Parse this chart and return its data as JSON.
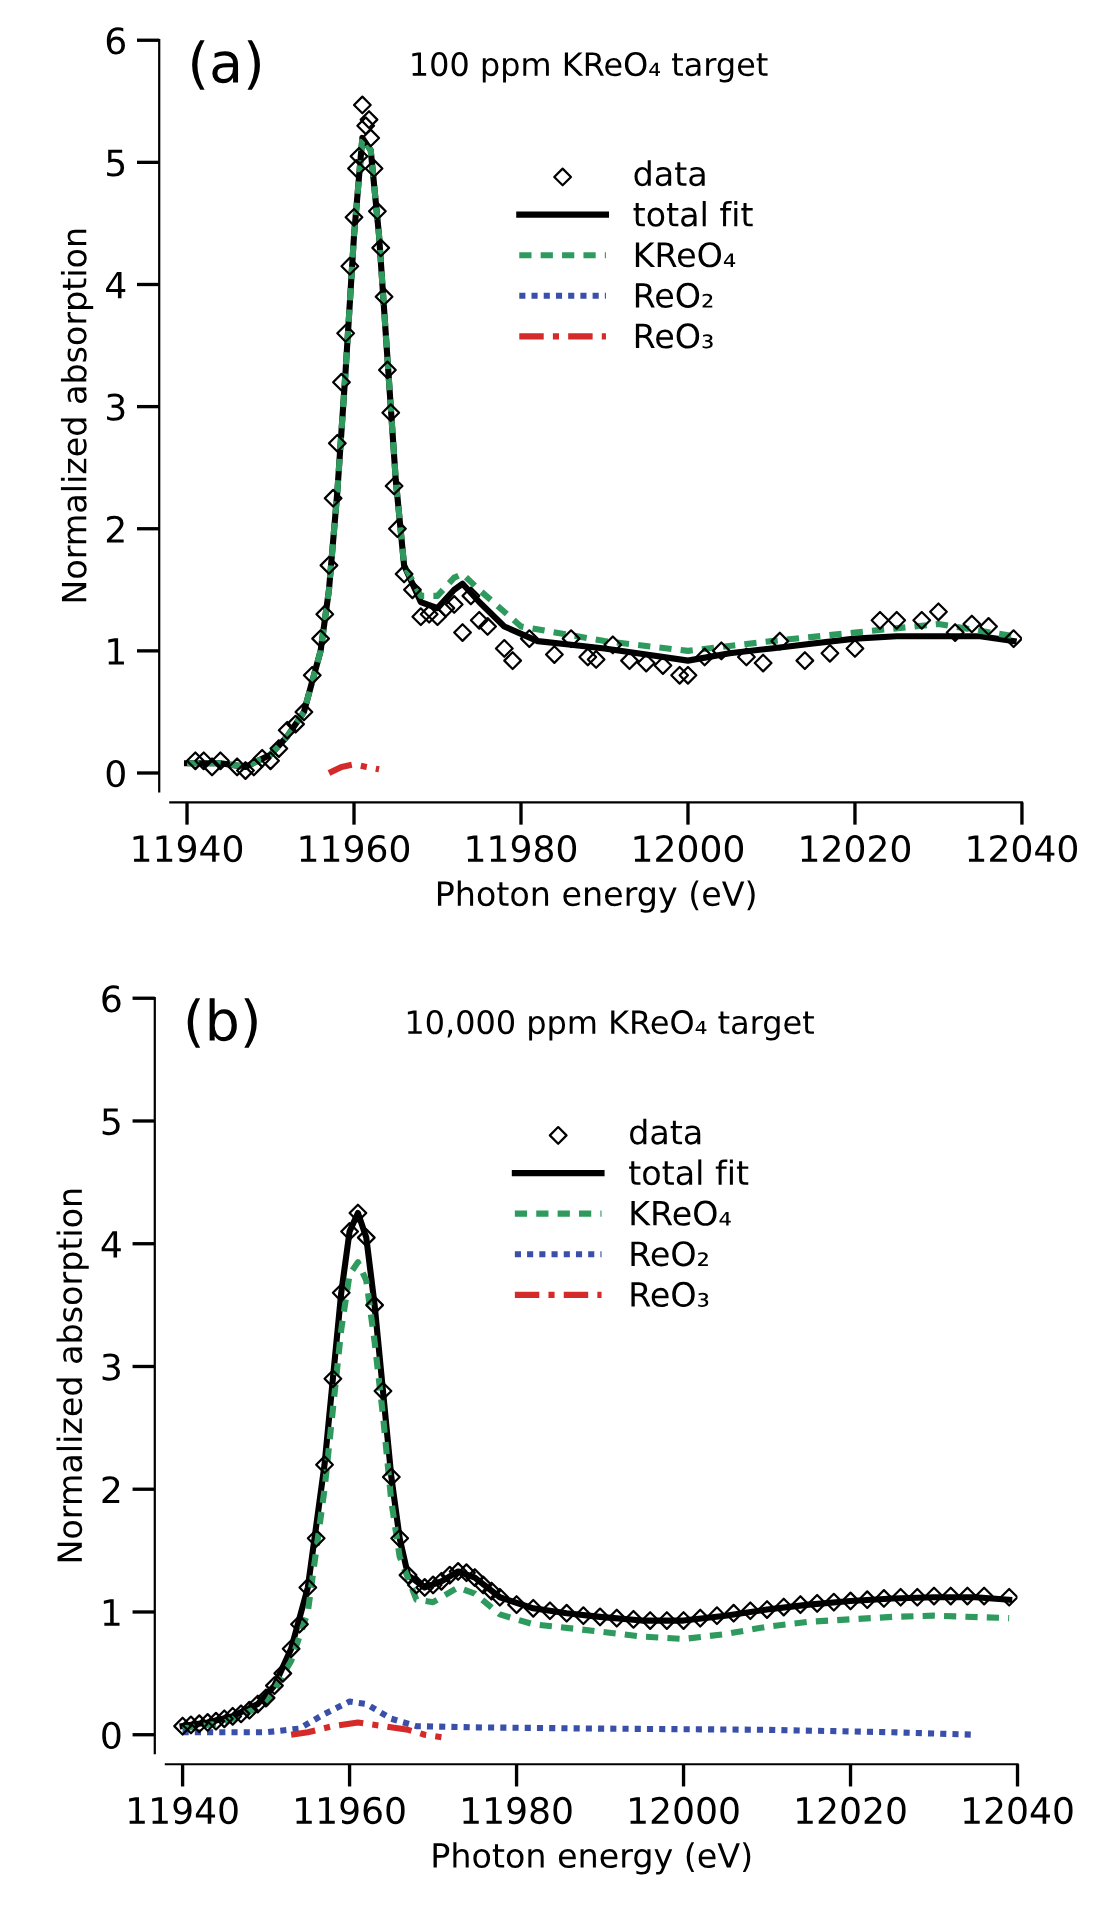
{
  "chart_data": [
    {
      "type": "line",
      "title": "100 ppm KReO₄ target",
      "annotations": [
        "(a)"
      ],
      "xlabel": "Photon energy (eV)",
      "ylabel": "Normalized absorption",
      "xlim": [
        11938,
        12040
      ],
      "xticks": [
        11940,
        11960,
        11980,
        12000,
        12020,
        12040
      ],
      "ylim": [
        -0.15,
        6
      ],
      "yticks": [
        0,
        1,
        2,
        3,
        4,
        5,
        6
      ],
      "grid": false,
      "legend": "top right",
      "series": [
        {
          "name": "data",
          "type": "scatter",
          "marker": "diamond",
          "color": "#000000",
          "x": [
            11941,
            11942,
            11943,
            11944,
            11946,
            11947,
            11948,
            11949,
            11950,
            11951,
            11952,
            11953,
            11954,
            11955,
            11956,
            11956.5,
            11957,
            11957.5,
            11958,
            11958.5,
            11959,
            11959.5,
            11960,
            11960.3,
            11960.6,
            11961,
            11961.4,
            11961.8,
            11962,
            11962.4,
            11962.8,
            11963.2,
            11963.6,
            11964,
            11964.4,
            11964.8,
            11965.2,
            11966,
            11967,
            11968,
            11969,
            11970,
            11971,
            11972,
            11973,
            11974,
            11975,
            11976,
            11978,
            11979,
            11981,
            11984,
            11986,
            11988,
            11989,
            11991,
            11993,
            11995,
            11997,
            11999,
            12000,
            12002,
            12004,
            12007,
            12009,
            12011,
            12014,
            12017,
            12020,
            12023,
            12025,
            12028,
            12030,
            12032,
            12034,
            12036,
            12039
          ],
          "values": [
            0.1,
            0.1,
            0.05,
            0.1,
            0.05,
            0.02,
            0.05,
            0.12,
            0.1,
            0.2,
            0.35,
            0.4,
            0.5,
            0.8,
            1.1,
            1.3,
            1.7,
            2.25,
            2.7,
            3.2,
            3.6,
            4.15,
            4.55,
            4.95,
            5.05,
            5.47,
            5.3,
            5.35,
            5.2,
            4.95,
            4.6,
            4.3,
            3.9,
            3.3,
            2.95,
            2.35,
            2.0,
            1.63,
            1.5,
            1.28,
            1.3,
            1.28,
            1.35,
            1.38,
            1.15,
            1.45,
            1.25,
            1.2,
            1.02,
            0.92,
            1.1,
            0.97,
            1.1,
            0.95,
            0.93,
            1.05,
            0.92,
            0.9,
            0.88,
            0.8,
            0.8,
            0.95,
            1.0,
            0.95,
            0.9,
            1.08,
            0.92,
            0.98,
            1.02,
            1.25,
            1.25,
            1.25,
            1.32,
            1.15,
            1.22,
            1.2,
            1.1
          ]
        },
        {
          "name": "total fit",
          "type": "line",
          "line_style": "solid",
          "color": "#000000",
          "x": [
            11940,
            11944,
            11947,
            11950,
            11952,
            11954,
            11956,
            11957,
            11958,
            11959,
            11960,
            11961,
            11962,
            11963,
            11964,
            11965,
            11966,
            11968,
            11970,
            11972,
            11973,
            11975,
            11978,
            11982,
            11986,
            11990,
            11995,
            12000,
            12005,
            12010,
            12015,
            12020,
            12025,
            12030,
            12035,
            12039
          ],
          "values": [
            0.08,
            0.08,
            0.05,
            0.15,
            0.3,
            0.5,
            1.0,
            1.5,
            2.3,
            3.3,
            4.4,
            5.2,
            5.1,
            4.4,
            3.4,
            2.4,
            1.7,
            1.4,
            1.35,
            1.5,
            1.55,
            1.4,
            1.2,
            1.08,
            1.05,
            1.02,
            0.97,
            0.92,
            0.98,
            1.02,
            1.06,
            1.1,
            1.12,
            1.12,
            1.12,
            1.08
          ]
        },
        {
          "name": "KReO₄",
          "type": "line",
          "line_style": "dashed",
          "color": "#2e9a5e",
          "x": [
            11940,
            11944,
            11947,
            11950,
            11952,
            11954,
            11956,
            11957,
            11958,
            11959,
            11960,
            11961,
            11962,
            11963,
            11964,
            11965,
            11966,
            11968,
            11970,
            11972,
            11973,
            11975,
            11980,
            11990,
            12000,
            12010,
            12020,
            12030,
            12039
          ],
          "values": [
            0.08,
            0.08,
            0.05,
            0.15,
            0.3,
            0.5,
            1.0,
            1.5,
            2.3,
            3.3,
            4.4,
            5.2,
            5.1,
            4.4,
            3.4,
            2.4,
            1.7,
            1.45,
            1.45,
            1.6,
            1.63,
            1.5,
            1.2,
            1.08,
            1.0,
            1.08,
            1.15,
            1.22,
            1.12
          ]
        },
        {
          "name": "ReO₂",
          "line_style": "dotted",
          "color": "#3a4fa8"
        },
        {
          "name": "ReO₃",
          "type": "line",
          "line_style": "dashdot",
          "color": "#d42a2a",
          "x": [
            11957,
            11958.5,
            11960,
            11961.5,
            11963
          ],
          "values": [
            0.0,
            0.05,
            0.07,
            0.05,
            0.03
          ]
        }
      ]
    },
    {
      "type": "line",
      "title": "10,000 ppm KReO₄ target",
      "annotations": [
        "(b)"
      ],
      "xlabel": "Photon energy (eV)",
      "ylabel": "Normalized absorption",
      "xlim": [
        11938,
        12040
      ],
      "xticks": [
        11940,
        11960,
        11980,
        12000,
        12020,
        12040
      ],
      "ylim": [
        -0.15,
        6
      ],
      "yticks": [
        0,
        1,
        2,
        3,
        4,
        5,
        6
      ],
      "grid": false,
      "legend": "top right",
      "series": [
        {
          "name": "data",
          "type": "scatter",
          "marker": "diamond",
          "color": "#000000",
          "x": [
            11940,
            11941,
            11942,
            11943,
            11944,
            11945,
            11946,
            11947,
            11948,
            11949,
            11950,
            11951,
            11952,
            11953,
            11954,
            11955,
            11956,
            11957,
            11958,
            11959,
            11960,
            11961,
            11962,
            11963,
            11964,
            11965,
            11966,
            11967,
            11968,
            11969,
            11970,
            11971,
            11972,
            11973,
            11974,
            11975,
            11976,
            11977,
            11978,
            11980,
            11982,
            11984,
            11986,
            11988,
            11990,
            11992,
            11994,
            11996,
            11998,
            12000,
            12002,
            12004,
            12006,
            12008,
            12010,
            12012,
            12014,
            12016,
            12018,
            12020,
            12022,
            12024,
            12026,
            12028,
            12030,
            12032,
            12034,
            12036,
            12039
          ],
          "values": [
            0.07,
            0.08,
            0.09,
            0.1,
            0.11,
            0.13,
            0.15,
            0.17,
            0.2,
            0.25,
            0.3,
            0.4,
            0.5,
            0.7,
            0.9,
            1.2,
            1.6,
            2.2,
            2.9,
            3.6,
            4.1,
            4.25,
            4.05,
            3.5,
            2.8,
            2.1,
            1.6,
            1.3,
            1.22,
            1.2,
            1.22,
            1.25,
            1.3,
            1.33,
            1.32,
            1.28,
            1.22,
            1.17,
            1.12,
            1.06,
            1.03,
            1.01,
            0.99,
            0.97,
            0.96,
            0.95,
            0.94,
            0.93,
            0.93,
            0.93,
            0.95,
            0.97,
            0.99,
            1.01,
            1.02,
            1.04,
            1.06,
            1.07,
            1.08,
            1.09,
            1.1,
            1.11,
            1.12,
            1.12,
            1.13,
            1.13,
            1.13,
            1.13,
            1.12
          ]
        },
        {
          "name": "total fit",
          "type": "line",
          "line_style": "solid",
          "color": "#000000",
          "x": [
            11940,
            11943,
            11946,
            11949,
            11951,
            11953,
            11955,
            11957,
            11958,
            11959,
            11960,
            11961,
            11962,
            11963,
            11964,
            11965,
            11966,
            11967,
            11969,
            11971,
            11973,
            11975,
            11978,
            11982,
            11986,
            11990,
            11995,
            12000,
            12005,
            12010,
            12015,
            12020,
            12025,
            12030,
            12035,
            12039
          ],
          "values": [
            0.07,
            0.1,
            0.15,
            0.25,
            0.4,
            0.7,
            1.2,
            2.2,
            2.9,
            3.6,
            4.1,
            4.25,
            4.05,
            3.5,
            2.8,
            2.1,
            1.6,
            1.3,
            1.2,
            1.25,
            1.33,
            1.28,
            1.12,
            1.03,
            0.99,
            0.96,
            0.93,
            0.93,
            0.97,
            1.02,
            1.06,
            1.09,
            1.11,
            1.12,
            1.12,
            1.1
          ]
        },
        {
          "name": "KReO₄",
          "type": "line",
          "line_style": "dashed",
          "color": "#2e9a5e",
          "x": [
            11940,
            11945,
            11950,
            11953,
            11955,
            11957,
            11959,
            11960,
            11961,
            11962,
            11963,
            11964,
            11965,
            11966,
            11968,
            11970,
            11973,
            11975,
            11978,
            11982,
            11990,
            11995,
            12000,
            12005,
            12010,
            12015,
            12020,
            12025,
            12030,
            12039
          ],
          "values": [
            0.05,
            0.1,
            0.25,
            0.6,
            1.0,
            2.0,
            3.3,
            3.75,
            3.85,
            3.7,
            3.2,
            2.6,
            1.9,
            1.45,
            1.1,
            1.08,
            1.2,
            1.15,
            0.98,
            0.9,
            0.84,
            0.8,
            0.78,
            0.82,
            0.88,
            0.92,
            0.94,
            0.96,
            0.97,
            0.95
          ]
        },
        {
          "name": "ReO₂",
          "type": "line",
          "line_style": "dotted",
          "color": "#3a4fa8",
          "x": [
            11940,
            11950,
            11954,
            11957,
            11960,
            11962,
            11965,
            11968,
            11975,
            11990,
            12010,
            12025,
            12035
          ],
          "values": [
            0.02,
            0.02,
            0.05,
            0.17,
            0.27,
            0.25,
            0.13,
            0.07,
            0.06,
            0.05,
            0.04,
            0.02,
            0.0
          ]
        },
        {
          "name": "ReO₃",
          "type": "line",
          "line_style": "dashdot",
          "color": "#d42a2a",
          "x": [
            11953,
            11955,
            11958,
            11961,
            11964,
            11967,
            11969,
            11971
          ],
          "values": [
            0.0,
            0.02,
            0.07,
            0.1,
            0.07,
            0.04,
            0.0,
            -0.02
          ]
        }
      ]
    }
  ]
}
